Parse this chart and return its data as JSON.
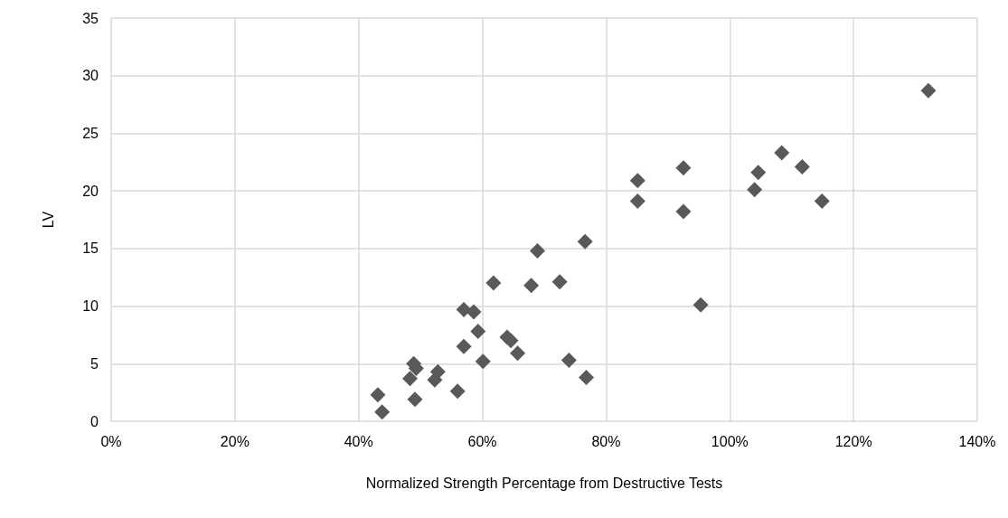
{
  "chart_data": {
    "type": "scatter",
    "xlabel": "Normalized Strength Percentage from Destructive Tests",
    "ylabel": "LV",
    "x": [
      43.1,
      43.8,
      48.3,
      48.9,
      49.3,
      49.1,
      52.3,
      52.8,
      56.0,
      57.0,
      57.0,
      58.6,
      59.3,
      60.1,
      61.8,
      64.0,
      64.6,
      65.7,
      67.9,
      68.9,
      72.5,
      74.0,
      76.6,
      76.8,
      85.1,
      85.1,
      92.5,
      92.5,
      95.3,
      104.0,
      104.6,
      108.4,
      111.7,
      114.9,
      132.1
    ],
    "series": [
      {
        "color": "#595959",
        "values": [
          2.3,
          0.8,
          3.7,
          5.0,
          4.6,
          1.9,
          3.6,
          4.3,
          2.6,
          6.5,
          9.7,
          9.5,
          7.8,
          5.2,
          12.0,
          7.3,
          7.0,
          5.9,
          11.8,
          14.8,
          12.1,
          5.3,
          15.6,
          3.8,
          20.9,
          19.1,
          22.0,
          18.2,
          10.1,
          20.1,
          21.6,
          23.3,
          22.1,
          19.1,
          28.7
        ]
      }
    ],
    "xlim": [
      0,
      140
    ],
    "xticks": [
      {
        "value": 0,
        "label": "0%"
      },
      {
        "value": 20,
        "label": "20%"
      },
      {
        "value": 40,
        "label": "40%"
      },
      {
        "value": 60,
        "label": "60%"
      },
      {
        "value": 80,
        "label": "80%"
      },
      {
        "value": 100,
        "label": "100%"
      },
      {
        "value": 120,
        "label": "120%"
      },
      {
        "value": 140,
        "label": "140%"
      }
    ],
    "ylim": [
      0,
      35
    ],
    "yticks": [
      0,
      5,
      10,
      15,
      20,
      25,
      30,
      35
    ],
    "grid": true,
    "marker": "diamond"
  }
}
